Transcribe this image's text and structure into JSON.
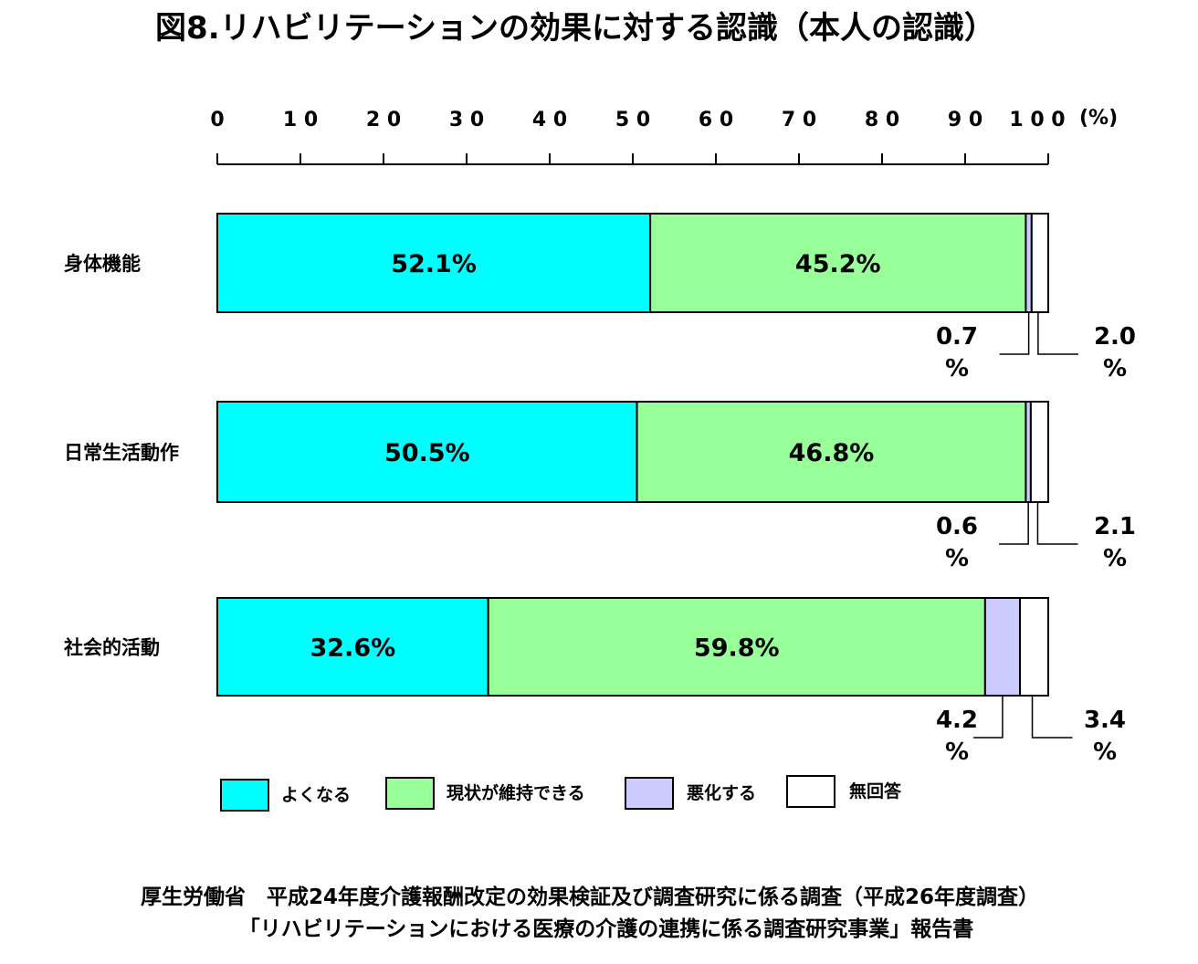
{
  "chart_data": {
    "type": "bar",
    "orientation": "horizontal",
    "stacked": true,
    "title": "図8.リハビリテーションの効果に対する認識（本人の認識）",
    "xlim": [
      0,
      100
    ],
    "x_ticks": [
      "0",
      "1 0",
      "2 0",
      "3 0",
      "4 0",
      "5 0",
      "6 0",
      "7 0",
      "8 0",
      "9 0",
      "1 0 0"
    ],
    "x_unit": "(%)",
    "categories": [
      "身体機能",
      "日常生活動作",
      "社会的活動"
    ],
    "series": [
      {
        "name": "よくなる",
        "color": "#00ffff",
        "values": [
          52.1,
          50.5,
          32.6
        ],
        "labels": [
          "52.1%",
          "50.5%",
          "32.6%"
        ]
      },
      {
        "name": "現状が維持できる",
        "color": "#99ff99",
        "values": [
          45.2,
          46.8,
          59.8
        ],
        "labels": [
          "45.2%",
          "46.8%",
          "59.8%"
        ]
      },
      {
        "name": "悪化する",
        "color": "#ccccff",
        "values": [
          0.7,
          0.6,
          4.2
        ],
        "labels": [
          "0.7",
          "0.6",
          "4.2"
        ],
        "label_unit": "%"
      },
      {
        "name": "無回答",
        "color": "#ffffff",
        "values": [
          2.0,
          2.1,
          3.4
        ],
        "labels": [
          "2.0",
          "2.1",
          "3.4"
        ],
        "label_unit": "%"
      }
    ],
    "legend_position": "bottom",
    "grid": false
  },
  "source": {
    "line1": "厚生労働省　平成24年度介護報酬改定の効果検証及び調査研究に係る調査（平成26年度調査）",
    "line2": "「リハビリテーションにおける医療の介護の連携に係る調査研究事業」報告書"
  }
}
